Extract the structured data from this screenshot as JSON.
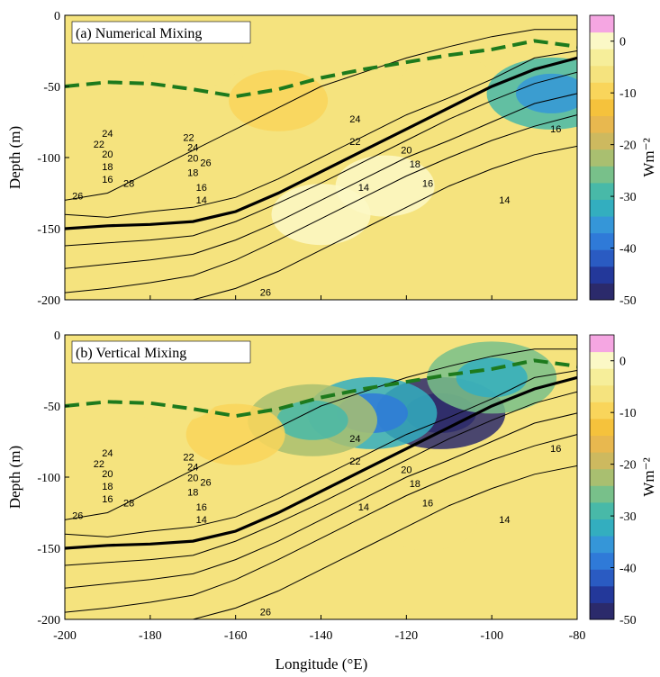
{
  "chart_data": {
    "type": "heatmap",
    "shared_x": {
      "xlabel": "Longitude (°E)",
      "xlim": [
        -200,
        -80
      ],
      "xticks": [
        -200,
        -180,
        -160,
        -140,
        -120,
        -100,
        -80
      ],
      "xtick_labels": [
        "-200",
        "-180",
        "-160",
        "-140",
        "-120",
        "-100",
        "-80"
      ]
    },
    "colorbar": {
      "label": "Wm⁻²",
      "clim": [
        -50,
        5
      ],
      "ticks": [
        0,
        -10,
        -20,
        -30,
        -40,
        -50
      ],
      "tick_labels": [
        "0",
        "-10",
        "-20",
        "-30",
        "-40",
        "-50"
      ],
      "colors": [
        "#2b2a6b",
        "#23389a",
        "#2a5bc2",
        "#2f7ad8",
        "#3596d8",
        "#33aebf",
        "#48b9a8",
        "#78c08a",
        "#a9bf70",
        "#cdb95f",
        "#e8b84f",
        "#f5c23c",
        "#f9d55b",
        "#f5e37e",
        "#f6ee9a",
        "#fbf8c6",
        "#f5a6e2"
      ]
    },
    "panels": [
      {
        "title": "(a) Numerical Mixing",
        "ylabel": "Depth (m)",
        "ylim": [
          -200,
          0
        ],
        "yticks": [
          0,
          -50,
          -100,
          -150,
          -200
        ],
        "ytick_labels": [
          "0",
          "-50",
          "-100",
          "-150",
          "-200"
        ],
        "isotherm_labels": [
          "28",
          "26",
          "26",
          "26",
          "24",
          "24",
          "24",
          "22",
          "22",
          "22",
          "20",
          "20",
          "20",
          "18",
          "18",
          "18",
          "16",
          "16",
          "16",
          "14",
          "14",
          "14",
          "16"
        ],
        "heat_blobs": [
          {
            "lon": -150,
            "depth": -60,
            "value": -9
          },
          {
            "lon": -140,
            "depth": -140,
            "value": 1
          },
          {
            "lon": -125,
            "depth": -120,
            "value": 1
          },
          {
            "lon": -170,
            "depth": -30,
            "value": -7
          },
          {
            "lon": -110,
            "depth": -50,
            "value": -7
          },
          {
            "lon": -86,
            "depth": -55,
            "value": -28
          }
        ],
        "mixed_layer_depth": {
          "lon": [
            -200,
            -190,
            -180,
            -170,
            -160,
            -150,
            -140,
            -130,
            -120,
            -110,
            -100,
            -90,
            -80
          ],
          "depth": [
            -50,
            -47,
            -48,
            -52,
            -57,
            -52,
            -44,
            -38,
            -33,
            -28,
            -24,
            -18,
            -22
          ]
        },
        "isotherms": [
          {
            "temp": 28,
            "lon": [
              -200,
              -190,
              -180,
              -170,
              -160,
              -150,
              -140,
              -130,
              -120,
              -110,
              -100,
              -90,
              -80
            ],
            "depth": [
              -200,
              -205,
              -210,
              -215,
              -220,
              -225,
              -230,
              -235,
              -240,
              -245,
              -250,
              -255,
              -255
            ]
          },
          {
            "temp": 26,
            "lon": [
              -200,
              -190,
              -180,
              -170,
              -160,
              -150,
              -140,
              -130,
              -120,
              -110,
              -100,
              -90,
              -80
            ],
            "depth": [
              -130,
              -125,
              -110,
              -95,
              -80,
              -65,
              -50,
              -40,
              -30,
              -22,
              -15,
              -10,
              -10
            ]
          },
          {
            "temp": 24,
            "lon": [
              -200,
              -190,
              -180,
              -170,
              -160,
              -150,
              -140,
              -130,
              -120,
              -110,
              -100,
              -90,
              -80
            ],
            "depth": [
              -140,
              -142,
              -138,
              -135,
              -128,
              -115,
              -100,
              -85,
              -70,
              -58,
              -45,
              -30,
              -25
            ]
          },
          {
            "temp": 22,
            "lon": [
              -200,
              -190,
              -180,
              -170,
              -160,
              -150,
              -140,
              -130,
              -120,
              -110,
              -100,
              -90,
              -80
            ],
            "depth": [
              -150,
              -148,
              -147,
              -145,
              -138,
              -125,
              -110,
              -95,
              -80,
              -65,
              -50,
              -38,
              -30
            ]
          },
          {
            "temp": 20,
            "lon": [
              -200,
              -190,
              -180,
              -170,
              -160,
              -150,
              -140,
              -130,
              -120,
              -110,
              -100,
              -90,
              -80
            ],
            "depth": [
              -162,
              -160,
              -158,
              -155,
              -145,
              -132,
              -118,
              -103,
              -88,
              -73,
              -60,
              -48,
              -40
            ]
          },
          {
            "temp": 18,
            "lon": [
              -200,
              -190,
              -180,
              -170,
              -160,
              -150,
              -140,
              -130,
              -120,
              -110,
              -100,
              -90,
              -80
            ],
            "depth": [
              -178,
              -175,
              -172,
              -168,
              -158,
              -145,
              -130,
              -115,
              -100,
              -88,
              -75,
              -62,
              -55
            ]
          },
          {
            "temp": 16,
            "lon": [
              -200,
              -190,
              -180,
              -170,
              -160,
              -150,
              -140,
              -130,
              -120,
              -110,
              -100,
              -90,
              -80
            ],
            "depth": [
              -195,
              -192,
              -188,
              -183,
              -172,
              -158,
              -143,
              -128,
              -113,
              -100,
              -88,
              -78,
              -70
            ]
          },
          {
            "temp": 14,
            "lon": [
              -200,
              -190,
              -180,
              -170,
              -160,
              -150,
              -140,
              -130,
              -120,
              -110,
              -100,
              -90,
              -80
            ],
            "depth": [
              -210,
              -208,
              -205,
              -200,
              -192,
              -180,
              -165,
              -150,
              -135,
              -120,
              -108,
              -98,
              -92
            ]
          }
        ]
      },
      {
        "title": "(b) Vertical Mixing",
        "ylabel": "Depth (m)",
        "ylim": [
          -200,
          0
        ],
        "yticks": [
          0,
          -50,
          -100,
          -150,
          -200
        ],
        "ytick_labels": [
          "0",
          "-50",
          "-100",
          "-150",
          "-200"
        ],
        "isotherm_labels": [
          "28",
          "26",
          "26",
          "26",
          "24",
          "24",
          "24",
          "22",
          "22",
          "22",
          "20",
          "20",
          "20",
          "18",
          "18",
          "18",
          "16",
          "16",
          "16",
          "14",
          "14",
          "14",
          "16"
        ],
        "heat_blobs": [
          {
            "lon": -112,
            "depth": -55,
            "value": -50
          },
          {
            "lon": -128,
            "depth": -55,
            "value": -32
          },
          {
            "lon": -142,
            "depth": -60,
            "value": -22
          },
          {
            "lon": -100,
            "depth": -30,
            "value": -25
          },
          {
            "lon": -160,
            "depth": -70,
            "value": -10
          },
          {
            "lon": -175,
            "depth": -40,
            "value": -7
          },
          {
            "lon": -115,
            "depth": -130,
            "value": -7
          }
        ],
        "mixed_layer_depth": {
          "lon": [
            -200,
            -190,
            -180,
            -170,
            -160,
            -150,
            -140,
            -130,
            -120,
            -110,
            -100,
            -90,
            -80
          ],
          "depth": [
            -50,
            -47,
            -48,
            -52,
            -57,
            -52,
            -44,
            -38,
            -33,
            -28,
            -24,
            -18,
            -22
          ]
        },
        "isotherms": [
          {
            "temp": 28,
            "lon": [
              -200,
              -190,
              -180,
              -170,
              -160,
              -150,
              -140,
              -130,
              -120,
              -110,
              -100,
              -90,
              -80
            ],
            "depth": [
              -200,
              -205,
              -210,
              -215,
              -220,
              -225,
              -230,
              -235,
              -240,
              -245,
              -250,
              -255,
              -255
            ]
          },
          {
            "temp": 26,
            "lon": [
              -200,
              -190,
              -180,
              -170,
              -160,
              -150,
              -140,
              -130,
              -120,
              -110,
              -100,
              -90,
              -80
            ],
            "depth": [
              -130,
              -125,
              -110,
              -95,
              -80,
              -65,
              -50,
              -40,
              -30,
              -22,
              -15,
              -10,
              -10
            ]
          },
          {
            "temp": 24,
            "lon": [
              -200,
              -190,
              -180,
              -170,
              -160,
              -150,
              -140,
              -130,
              -120,
              -110,
              -100,
              -90,
              -80
            ],
            "depth": [
              -140,
              -142,
              -138,
              -135,
              -128,
              -115,
              -100,
              -85,
              -70,
              -58,
              -45,
              -30,
              -25
            ]
          },
          {
            "temp": 22,
            "lon": [
              -200,
              -190,
              -180,
              -170,
              -160,
              -150,
              -140,
              -130,
              -120,
              -110,
              -100,
              -90,
              -80
            ],
            "depth": [
              -150,
              -148,
              -147,
              -145,
              -138,
              -125,
              -110,
              -95,
              -80,
              -65,
              -50,
              -38,
              -30
            ]
          },
          {
            "temp": 20,
            "lon": [
              -200,
              -190,
              -180,
              -170,
              -160,
              -150,
              -140,
              -130,
              -120,
              -110,
              -100,
              -90,
              -80
            ],
            "depth": [
              -162,
              -160,
              -158,
              -155,
              -145,
              -132,
              -118,
              -103,
              -88,
              -73,
              -60,
              -48,
              -40
            ]
          },
          {
            "temp": 18,
            "lon": [
              -200,
              -190,
              -180,
              -170,
              -160,
              -150,
              -140,
              -130,
              -120,
              -110,
              -100,
              -90,
              -80
            ],
            "depth": [
              -178,
              -175,
              -172,
              -168,
              -158,
              -145,
              -130,
              -115,
              -100,
              -88,
              -75,
              -62,
              -55
            ]
          },
          {
            "temp": 16,
            "lon": [
              -200,
              -190,
              -180,
              -170,
              -160,
              -150,
              -140,
              -130,
              -120,
              -110,
              -100,
              -90,
              -80
            ],
            "depth": [
              -195,
              -192,
              -188,
              -183,
              -172,
              -158,
              -143,
              -128,
              -113,
              -100,
              -88,
              -78,
              -70
            ]
          },
          {
            "temp": 14,
            "lon": [
              -200,
              -190,
              -180,
              -170,
              -160,
              -150,
              -140,
              -130,
              -120,
              -110,
              -100,
              -90,
              -80
            ],
            "depth": [
              -210,
              -208,
              -205,
              -200,
              -192,
              -180,
              -165,
              -150,
              -135,
              -120,
              -108,
              -98,
              -92
            ]
          }
        ]
      }
    ]
  }
}
